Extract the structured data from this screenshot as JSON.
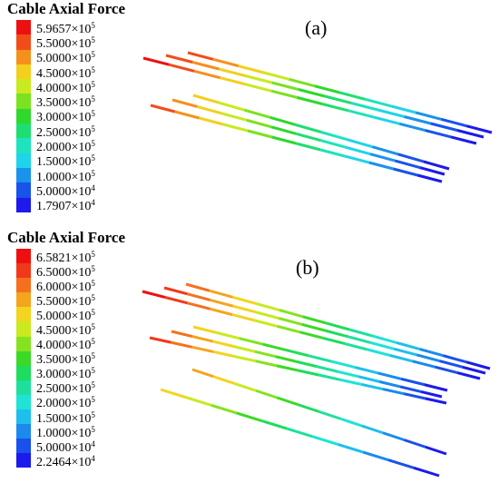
{
  "panel_a": {
    "label": "(a)",
    "legend_title": "Cable Axial Force",
    "legend": [
      {
        "mant": "5.9657",
        "exp": "5",
        "color": "#ee1010"
      },
      {
        "mant": "5.5000",
        "exp": "5",
        "color": "#f24d18"
      },
      {
        "mant": "5.0000",
        "exp": "5",
        "color": "#f5901c"
      },
      {
        "mant": "4.5000",
        "exp": "5",
        "color": "#f3cf1e"
      },
      {
        "mant": "4.0000",
        "exp": "5",
        "color": "#c8ea1e"
      },
      {
        "mant": "3.5000",
        "exp": "5",
        "color": "#7ae21e"
      },
      {
        "mant": "3.0000",
        "exp": "5",
        "color": "#2ed82c"
      },
      {
        "mant": "2.5000",
        "exp": "5",
        "color": "#1ede72"
      },
      {
        "mant": "2.0000",
        "exp": "5",
        "color": "#1ee3bc"
      },
      {
        "mant": "1.5000",
        "exp": "5",
        "color": "#1ed4ea"
      },
      {
        "mant": "1.0000",
        "exp": "5",
        "color": "#1b92ec"
      },
      {
        "mant": "5.0000",
        "exp": "4",
        "color": "#1a52ec"
      },
      {
        "mant": "1.7907",
        "exp": "4",
        "color": "#1c1aec"
      }
    ]
  },
  "panel_b": {
    "label": "(b)",
    "legend_title": "Cable Axial Force",
    "legend": [
      {
        "mant": "6.5821",
        "exp": "5",
        "color": "#ee1010"
      },
      {
        "mant": "6.5000",
        "exp": "5",
        "color": "#f2381a"
      },
      {
        "mant": "6.0000",
        "exp": "5",
        "color": "#f5701c"
      },
      {
        "mant": "5.5000",
        "exp": "5",
        "color": "#f5a41e"
      },
      {
        "mant": "5.0000",
        "exp": "5",
        "color": "#f3d41e"
      },
      {
        "mant": "4.5000",
        "exp": "5",
        "color": "#c8ea1e"
      },
      {
        "mant": "4.0000",
        "exp": "5",
        "color": "#84e31e"
      },
      {
        "mant": "3.5000",
        "exp": "5",
        "color": "#3cda26"
      },
      {
        "mant": "3.0000",
        "exp": "5",
        "color": "#1edc5e"
      },
      {
        "mant": "2.5000",
        "exp": "5",
        "color": "#1ee09e"
      },
      {
        "mant": "2.0000",
        "exp": "5",
        "color": "#1ee3d6"
      },
      {
        "mant": "1.5000",
        "exp": "5",
        "color": "#1ebfec"
      },
      {
        "mant": "1.0000",
        "exp": "5",
        "color": "#1b8aec"
      },
      {
        "mant": "5.0000",
        "exp": "4",
        "color": "#1a50ec"
      },
      {
        "mant": "2.2464",
        "exp": "4",
        "color": "#1c1aec"
      }
    ]
  },
  "multiply_sign": "×",
  "base": "10"
}
